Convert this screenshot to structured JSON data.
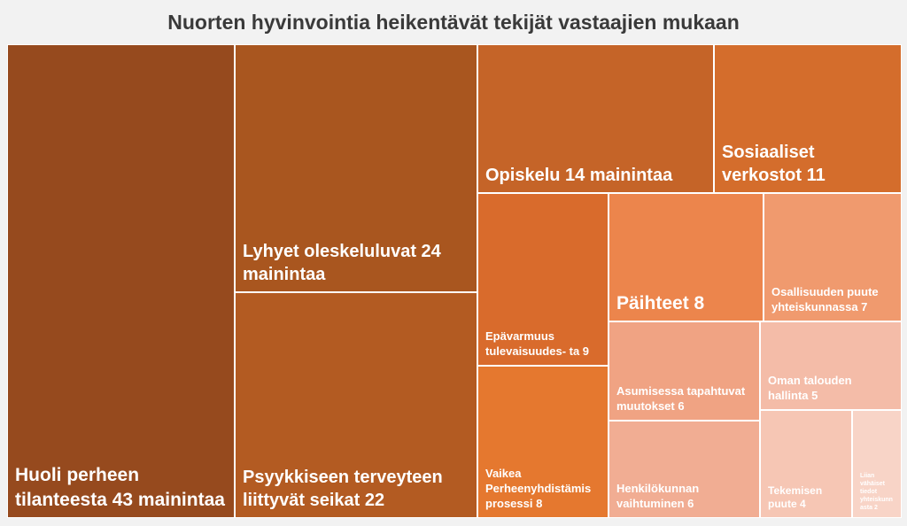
{
  "chart_data": {
    "type": "treemap",
    "title": "Nuorten hyvinvointia heikentävät tekijät vastaajien mukaan",
    "items": [
      {
        "label": "Huoli perheen tilanteesta 43 mainintaa",
        "value": 43,
        "color": "#964a1e"
      },
      {
        "label": "Lyhyet oleskeluluvat 24 mainintaa",
        "value": 24,
        "color": "#a9561f"
      },
      {
        "label": "Psyykkiseen terveyteen liittyvät seikat 22",
        "value": 22,
        "color": "#b35b22"
      },
      {
        "label": "Opiskelu 14 mainintaa",
        "value": 14,
        "color": "#c56428"
      },
      {
        "label": "Sosiaaliset verkostot 11",
        "value": 11,
        "color": "#d46d2c"
      },
      {
        "label": "Epävarmuus tulevaisuudes- ta 9",
        "value": 9,
        "color": "#d96b2c"
      },
      {
        "label": "Vaikea Perheenyhdistämisprosessi 8",
        "value": 8,
        "color": "#e5782f"
      },
      {
        "label": "Päihteet 8",
        "value": 8,
        "color": "#ec854c"
      },
      {
        "label": "Osallisuuden puute yhteiskunnassa 7",
        "value": 7,
        "color": "#f09a6e"
      },
      {
        "label": "Asumisessa tapahtuvat muutokset 6",
        "value": 6,
        "color": "#f0a383"
      },
      {
        "label": "Henkilökunnan vaihtuminen 6",
        "value": 6,
        "color": "#f1ad93"
      },
      {
        "label": "Oman talouden hallinta 5",
        "value": 5,
        "color": "#f4bca8"
      },
      {
        "label": "Tekemisen puute 4",
        "value": 4,
        "color": "#f6c6b4"
      },
      {
        "label": "Liian vähäiset tiedot yhteiskunnasta 2",
        "value": 2,
        "color": "#f8d4c7"
      }
    ]
  }
}
